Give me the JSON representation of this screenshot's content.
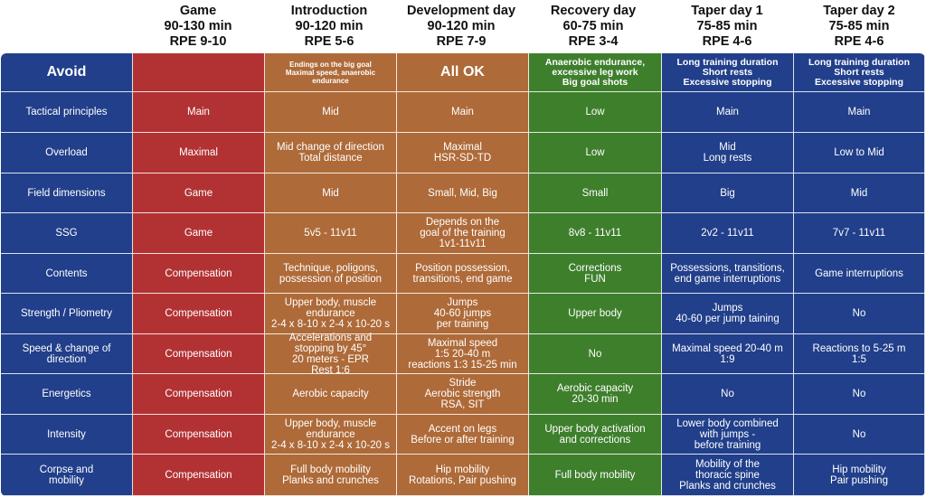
{
  "colors": {
    "label": "#213F8A",
    "game": "#B23234",
    "introduction": "#AE6A38",
    "development": "#AE6A38",
    "recovery": "#3E7F2C",
    "taper1": "#213F8A",
    "taper2": "#213F8A"
  },
  "columns": [
    {
      "key": "label",
      "lines": []
    },
    {
      "key": "game",
      "lines": [
        "Game",
        "90-130 min",
        "RPE 9-10"
      ]
    },
    {
      "key": "introduction",
      "lines": [
        "Introduction",
        "90-120 min",
        "RPE 5-6"
      ]
    },
    {
      "key": "development",
      "lines": [
        "Development day",
        "90-120 min",
        "RPE 7-9"
      ]
    },
    {
      "key": "recovery",
      "lines": [
        "Recovery day",
        "60-75 min",
        "RPE 3-4"
      ]
    },
    {
      "key": "taper1",
      "lines": [
        "Taper day 1",
        "75-85 min",
        "RPE 4-6"
      ]
    },
    {
      "key": "taper2",
      "lines": [
        "Taper day 2",
        "75-85 min",
        "RPE 4-6"
      ]
    }
  ],
  "rows": [
    {
      "id": "avoid",
      "cells": [
        "Avoid",
        "",
        "Endings on the big goal\nMaximal speed, anaerobic\nendurance",
        "All OK",
        "Anaerobic endurance,\nexcessive leg work\nBig goal shots",
        "Long training duration\nShort rests\nExcessive stopping",
        "Long training duration\nShort rests\nExcessive stopping"
      ]
    },
    {
      "id": "tactical-principles",
      "cells": [
        "Tactical principles",
        "Main",
        "Mid",
        "Main",
        "Low",
        "Main",
        "Main"
      ]
    },
    {
      "id": "overload",
      "cells": [
        "Overload",
        "Maximal",
        "Mid change of direction\nTotal distance",
        "Maximal\nHSR-SD-TD",
        "Low",
        "Mid\nLong rests",
        "Low to Mid"
      ]
    },
    {
      "id": "field-dimensions",
      "cells": [
        "Field dimensions",
        "Game",
        "Mid",
        "Small, Mid, Big",
        "Small",
        "Big",
        "Mid"
      ]
    },
    {
      "id": "ssg",
      "cells": [
        "SSG",
        "Game",
        "5v5 - 11v11",
        "Depends on the\ngoal of the training\n1v1-11v11",
        "8v8 - 11v11",
        "2v2 - 11v11",
        "7v7 - 11v11"
      ]
    },
    {
      "id": "contents",
      "cells": [
        "Contents",
        "Compensation",
        "Technique, poligons,\npossession of position",
        "Position possession,\ntransitions, end game",
        "Corrections\nFUN",
        "Possessions, transitions,\nend game interruptions",
        "Game interruptions"
      ]
    },
    {
      "id": "strength-pliometry",
      "cells": [
        "Strength / Pliometry",
        "Compensation",
        "Upper body, muscle\nendurance\n2-4 x 8-10 x 2-4 x 10-20 s",
        "Jumps\n40-60 jumps\nper training",
        "Upper body",
        "Jumps\n40-60 per jump taining",
        "No"
      ]
    },
    {
      "id": "speed-change-direction",
      "cells": [
        "Speed & change of\ndirection",
        "Compensation",
        "Accelerations and\nstopping by 45°\n20 meters - EPR\nRest 1:6",
        "Maximal speed\n1:5 20-40 m\nreactions 1:3 15-25 min",
        "No",
        "Maximal speed 20-40 m\n1:9",
        "Reactions to 5-25 m\n1:5"
      ]
    },
    {
      "id": "energetics",
      "cells": [
        "Energetics",
        "Compensation",
        "Aerobic capacity",
        "Stride\nAerobic strength\nRSA, SIT",
        "Aerobic capacity\n20-30 min",
        "No",
        "No"
      ]
    },
    {
      "id": "intensity",
      "cells": [
        "Intensity",
        "Compensation",
        "Upper body, muscle\nendurance\n2-4 x 8-10 x 2-4 x 10-20 s",
        "Accent on legs\nBefore or after training",
        "Upper body activation\nand corrections",
        "Lower body combined\nwith jumps -\nbefore training",
        "No"
      ]
    },
    {
      "id": "corpse-mobility",
      "cells": [
        "Corpse and\nmobility",
        "Compensation",
        "Full body mobility\nPlanks and crunches",
        "Hip mobility\nRotations, Pair pushing",
        "Full body mobility",
        "Mobility of the\nthoracic spine\nPlanks and crunches",
        "Hip mobility\nPair pushing"
      ]
    }
  ]
}
